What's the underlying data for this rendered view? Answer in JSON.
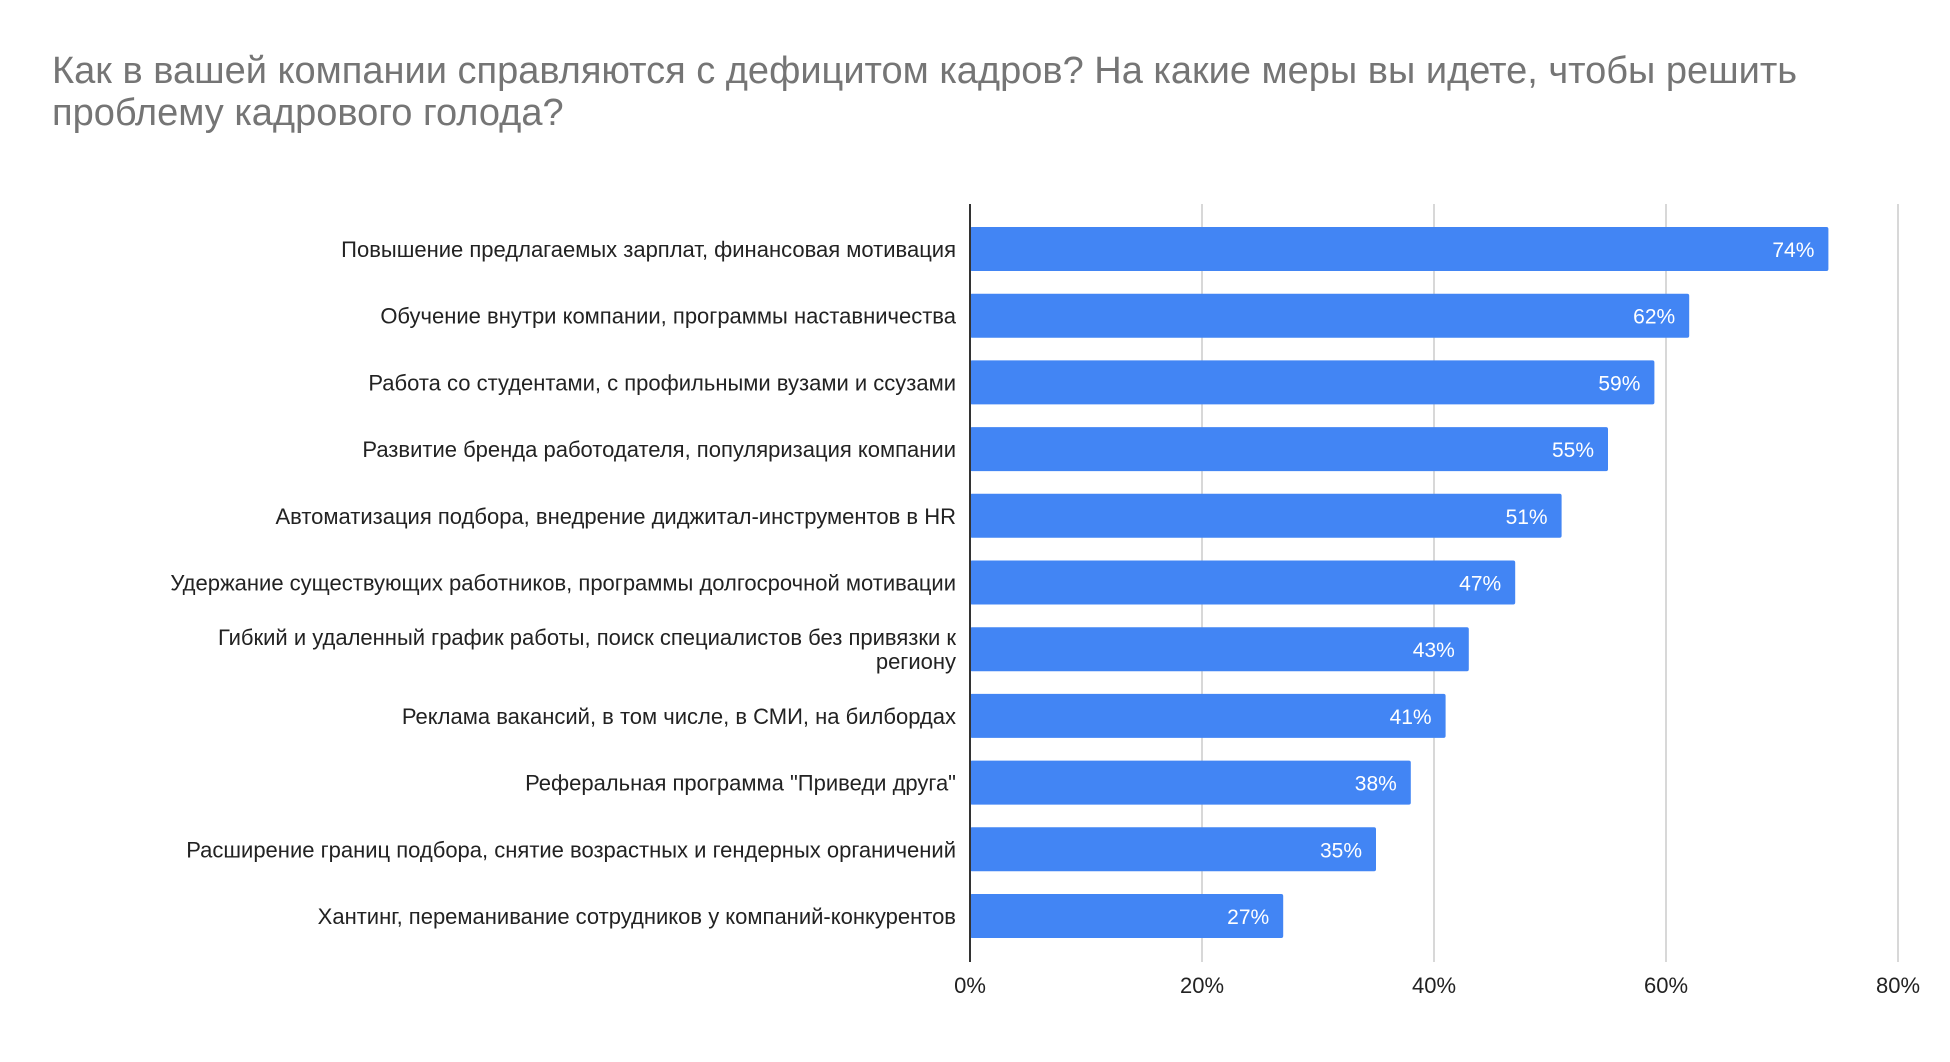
{
  "title": "Как в вашей компании справляются с дефицитом кадров? На какие меры вы идете, чтобы решить проблему кадрового голода?",
  "colors": {
    "bar": "#4285f4",
    "grid": "#cccccc",
    "axis": "#333333",
    "title": "#757575"
  },
  "chart_data": {
    "type": "bar",
    "orientation": "horizontal",
    "title": "Как в вашей компании справляются с дефицитом кадров? На какие меры вы идете, чтобы решить проблему кадрового голода?",
    "categories": [
      "Повышение предлагаемых зарплат, финансовая мотивация",
      "Обучение внутри компании, программы наставничества",
      "Работа со студентами, с профильными вузами и ссузами",
      "Развитие бренда работодателя, популяризация компании",
      "Автоматизация подбора, внедрение диджитал-инструментов в HR",
      "Удержание существующих работников, программы долгосрочной мотивации",
      "Гибкий и удаленный график работы, поиск специалистов без привязки к региону",
      "Реклама вакансий, в том числе, в СМИ, на билбордах",
      "Реферальная программа \"Приведи друга\"",
      "Расширение границ подбора, снятие возрастных и гендерных органичений",
      "Хантинг, переманивание сотрудников у компаний-конкурентов"
    ],
    "category_lines": [
      [
        "Повышение предлагаемых зарплат, финансовая мотивация"
      ],
      [
        "Обучение внутри компании, программы наставничества"
      ],
      [
        "Работа со студентами, с профильными вузами и ссузами"
      ],
      [
        "Развитие бренда работодателя, популяризация компании"
      ],
      [
        "Автоматизация подбора, внедрение диджитал-инструментов в HR"
      ],
      [
        "Удержание существующих работников, программы долгосрочной мотивации"
      ],
      [
        "Гибкий и удаленный график работы, поиск специалистов без привязки к",
        "региону"
      ],
      [
        "Реклама вакансий, в том числе, в СМИ, на билбордах"
      ],
      [
        "Реферальная программа \"Приведи друга\""
      ],
      [
        "Расширение границ подбора, снятие возрастных и гендерных органичений"
      ],
      [
        "Хантинг, переманивание сотрудников у компаний-конкурентов"
      ]
    ],
    "values": [
      74,
      62,
      59,
      55,
      51,
      47,
      43,
      41,
      38,
      35,
      27
    ],
    "value_labels": [
      "74%",
      "62%",
      "59%",
      "55%",
      "51%",
      "47%",
      "43%",
      "41%",
      "38%",
      "35%",
      "27%"
    ],
    "xlim": [
      0,
      80
    ],
    "x_ticks": [
      0,
      20,
      40,
      60,
      80
    ],
    "x_tick_labels": [
      "0%",
      "20%",
      "40%",
      "60%",
      "80%"
    ],
    "grid": true,
    "legend": "none"
  }
}
